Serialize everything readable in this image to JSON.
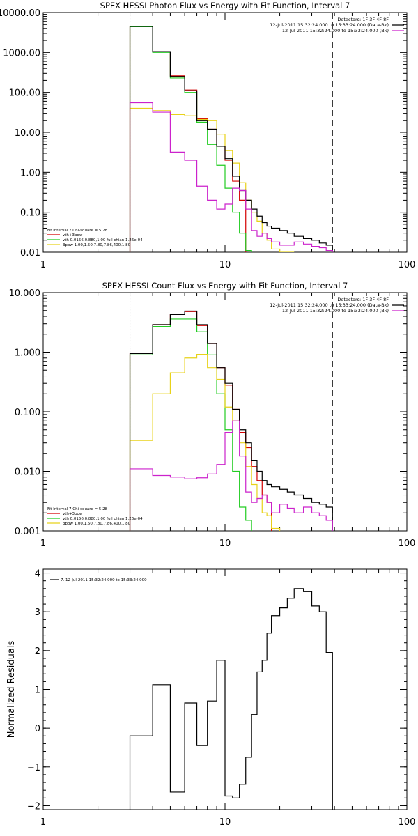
{
  "chart_data": [
    {
      "type": "line",
      "title": "SPEX HESSI Photon Flux vs Energy with Fit Function, Interval 7",
      "xscale": "log",
      "yscale": "log",
      "xlim": [
        1,
        100
      ],
      "ylim": [
        0.01,
        10000
      ],
      "xticks": [
        1,
        10,
        100
      ],
      "xtick_labels": [
        "1",
        "10",
        "100"
      ],
      "yticks": [
        0.01,
        0.1,
        1,
        10,
        100,
        1000,
        10000
      ],
      "ytick_labels": [
        "0.01",
        "0.10",
        "1.00",
        "10.00",
        "100.00",
        "1000.00",
        "10000.00"
      ],
      "vlines": [
        {
          "x": 3,
          "style": "dotted"
        },
        {
          "x": 39,
          "style": "dashed"
        }
      ],
      "info_text": [
        "Detectors: 1F 3F 4F 8F",
        "12-Jul-2011 15:32:24.000 to 15:33:24.000 (Data-Bk)",
        "12-Jul-2011 15:32:24.000 to 15:33:24.000 (Bk)"
      ],
      "legend": [
        "Fit Interval  7    Chi-square = 5.28",
        "vth+3pow",
        "vth 0.0156,0.880,1.00  full chian 1.26e-04",
        "3pow 1.00,1.50,7.80,7.86,400,1.80"
      ],
      "series": [
        {
          "name": "vth+3pow",
          "color": "#d40000",
          "edges": [
            3,
            4,
            5,
            6,
            7,
            8,
            9,
            10,
            11,
            12,
            13
          ],
          "values": [
            4500,
            1050,
            260,
            115,
            22,
            12,
            4.5,
            2.0,
            0.6,
            0.2
          ]
        },
        {
          "name": "vth",
          "color": "#22cc22",
          "edges": [
            3,
            4,
            5,
            6,
            7,
            8,
            9,
            10,
            11,
            12,
            13,
            14
          ],
          "values": [
            4400,
            1000,
            230,
            100,
            18,
            5.0,
            1.5,
            0.4,
            0.1,
            0.03,
            0.011
          ]
        },
        {
          "name": "3pow",
          "color": "#e8d21a",
          "edges": [
            3,
            4,
            5,
            6,
            7,
            8,
            9,
            10,
            11,
            12,
            13,
            14,
            15,
            16,
            17,
            18,
            20,
            22,
            24
          ],
          "values": [
            40,
            35,
            28,
            26,
            21,
            20,
            9.0,
            3.5,
            1.7,
            0.55,
            0.2,
            0.1,
            0.06,
            0.03,
            0.02,
            0.012,
            0.01,
            0.006
          ]
        },
        {
          "name": "Data",
          "color": "#000000",
          "edges": [
            3,
            4,
            5,
            6,
            7,
            8,
            9,
            10,
            11,
            12,
            13,
            14,
            15,
            16,
            17,
            18,
            20,
            22,
            24,
            27,
            30,
            33,
            36,
            39
          ],
          "values": [
            4500,
            1050,
            250,
            110,
            20,
            12,
            4.5,
            2.2,
            0.8,
            0.35,
            0.2,
            0.12,
            0.08,
            0.055,
            0.045,
            0.04,
            0.035,
            0.03,
            0.025,
            0.022,
            0.02,
            0.017,
            0.015
          ]
        },
        {
          "name": "Bk",
          "color": "#cc22cc",
          "edges": [
            3,
            4,
            5,
            6,
            7,
            8,
            9,
            10,
            11,
            12,
            13,
            14,
            15,
            16,
            17,
            18,
            20,
            22,
            24,
            27,
            30,
            33,
            36,
            39
          ],
          "values": [
            55,
            32,
            3.2,
            2.0,
            0.45,
            0.2,
            0.12,
            0.16,
            0.4,
            0.35,
            0.12,
            0.035,
            0.025,
            0.03,
            0.022,
            0.018,
            0.015,
            0.015,
            0.018,
            0.016,
            0.014,
            0.013,
            0.011
          ]
        }
      ]
    },
    {
      "type": "line",
      "title": "SPEX HESSI Count Flux vs Energy with Fit Function, Interval 7",
      "xscale": "log",
      "yscale": "log",
      "xlim": [
        1,
        100
      ],
      "ylim": [
        0.001,
        10
      ],
      "xticks": [
        1,
        10,
        100
      ],
      "xtick_labels": [
        "1",
        "10",
        "100"
      ],
      "yticks": [
        0.001,
        0.01,
        0.1,
        1,
        10
      ],
      "ytick_labels": [
        "0.001",
        "0.010",
        "0.100",
        "1.000",
        "10.000"
      ],
      "vlines": [
        {
          "x": 3,
          "style": "dotted"
        },
        {
          "x": 39,
          "style": "dashed"
        }
      ],
      "info_text": [
        "Detectors: 1F 3F 4F 8F",
        "12-Jul-2011 15:32:24.000 to 15:33:24.000 (Data-Bk)",
        "12-Jul-2011 15:32:24.000 to 15:33:24.000 (Bk)"
      ],
      "legend": [
        "Fit Interval  7    Chi-square = 5.28",
        "vth+3pow",
        "vth 0.0156,0.880,1.00  full chian 1.26e-04",
        "3pow 1.00,1.50,7.80,7.86,400,1.80"
      ],
      "series": [
        {
          "name": "vth+3pow",
          "color": "#d40000",
          "edges": [
            3,
            4,
            5,
            6,
            7,
            8,
            9,
            10,
            11,
            12,
            13,
            14,
            15,
            16,
            17,
            18
          ],
          "values": [
            0.95,
            2.9,
            4.3,
            4.8,
            2.8,
            1.4,
            0.55,
            0.28,
            0.11,
            0.045,
            0.025,
            0.012,
            0.007,
            0.004,
            0.003
          ]
        },
        {
          "name": "vth",
          "color": "#22cc22",
          "edges": [
            3,
            4,
            5,
            6,
            7,
            8,
            9,
            10,
            11,
            12,
            13,
            14
          ],
          "values": [
            0.9,
            2.7,
            3.6,
            3.6,
            2.2,
            0.9,
            0.2,
            0.05,
            0.01,
            0.0025,
            0.0015
          ]
        },
        {
          "name": "3pow",
          "color": "#e8d21a",
          "edges": [
            3,
            4,
            5,
            6,
            7,
            8,
            9,
            10,
            11,
            12,
            13,
            14,
            15,
            16,
            17,
            18,
            20
          ],
          "values": [
            0.033,
            0.2,
            0.45,
            0.8,
            0.92,
            0.55,
            0.35,
            0.12,
            0.07,
            0.03,
            0.012,
            0.006,
            0.0035,
            0.002,
            0.0018,
            0.0011
          ]
        },
        {
          "name": "Data",
          "color": "#000000",
          "edges": [
            3,
            4,
            5,
            6,
            7,
            8,
            9,
            10,
            11,
            12,
            13,
            14,
            15,
            16,
            17,
            18,
            20,
            22,
            24,
            27,
            30,
            33,
            36,
            39
          ],
          "values": [
            0.95,
            2.9,
            4.3,
            4.9,
            2.9,
            1.4,
            0.55,
            0.3,
            0.11,
            0.05,
            0.03,
            0.015,
            0.01,
            0.007,
            0.006,
            0.0055,
            0.005,
            0.0045,
            0.004,
            0.0035,
            0.003,
            0.0028,
            0.0025
          ]
        },
        {
          "name": "Bk",
          "color": "#cc22cc",
          "edges": [
            3,
            4,
            5,
            6,
            7,
            8,
            9,
            10,
            11,
            12,
            13,
            14,
            15,
            16,
            17,
            18,
            20,
            22,
            24,
            27,
            30,
            33,
            36,
            39
          ],
          "values": [
            0.011,
            0.0085,
            0.008,
            0.0075,
            0.0078,
            0.009,
            0.013,
            0.045,
            0.07,
            0.018,
            0.0045,
            0.003,
            0.0035,
            0.004,
            0.003,
            0.002,
            0.0028,
            0.0024,
            0.002,
            0.0025,
            0.002,
            0.0018,
            0.0015
          ]
        }
      ]
    },
    {
      "type": "line",
      "title": "",
      "xscale": "log",
      "yscale": "linear",
      "xlim": [
        1,
        100
      ],
      "ylim": [
        -2.1,
        4.1
      ],
      "xticks": [
        1,
        10,
        100
      ],
      "xtick_labels": [
        "1",
        "10",
        "100"
      ],
      "yticks": [
        -2,
        -1,
        0,
        1,
        2,
        3,
        4
      ],
      "ytick_labels": [
        "−2",
        "−1",
        "0",
        "1",
        "2",
        "3",
        "4"
      ],
      "ylabel": "Normalized Residuals",
      "legend": [
        "7. 12-Jul-2011 15:32:24.000 to 15:33:24.000"
      ],
      "series": [
        {
          "name": "7. 12-Jul-2011 15:32:24.000 to 15:33:24.000",
          "color": "#000000",
          "edges": [
            3,
            4,
            5,
            6,
            7,
            8,
            9,
            10,
            11,
            12,
            13,
            14,
            15,
            16,
            17,
            18,
            20,
            22,
            24,
            27,
            30,
            33,
            36,
            39
          ],
          "values": [
            -0.2,
            1.12,
            -1.65,
            0.65,
            -0.45,
            0.7,
            1.75,
            -1.75,
            -1.8,
            -1.45,
            -0.75,
            0.35,
            1.45,
            1.75,
            2.45,
            2.9,
            3.1,
            3.35,
            3.6,
            3.52,
            3.15,
            3.0,
            1.95
          ]
        }
      ]
    }
  ]
}
